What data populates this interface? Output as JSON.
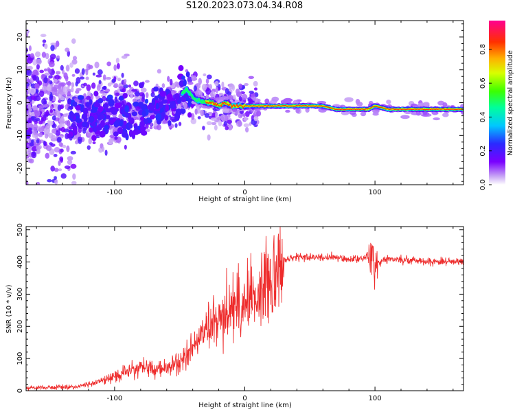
{
  "title": "S120.2023.073.04.34.R08",
  "chart_data": [
    {
      "type": "heatmap",
      "xlabel": "Height of straight line (km)",
      "ylabel": "Frequency (Hz)",
      "xlim": [
        -168,
        168
      ],
      "ylim": [
        -25,
        25
      ],
      "x_ticks": [
        -100,
        0,
        100
      ],
      "y_ticks": [
        -20,
        -10,
        0,
        10,
        20
      ],
      "ridge_x": [
        -80,
        -60,
        -45,
        -38,
        -30,
        -25,
        -20,
        -15,
        -10,
        -5,
        0,
        20,
        40,
        60,
        70,
        75,
        80,
        85,
        90,
        95,
        100,
        110,
        120,
        140,
        168
      ],
      "ridge_freq": [
        -4,
        -2,
        4,
        1,
        0,
        0,
        -1,
        0,
        -1,
        -1,
        -1,
        -1,
        -1,
        -1,
        -2,
        -2,
        -2,
        -2,
        -2,
        -2,
        -1,
        -2,
        -2,
        -2,
        -2
      ],
      "colorbar": {
        "label": "Normalized spectral amplitude",
        "ticks": [
          "0.0",
          "0.2",
          "0.4",
          "0.6",
          "0.8"
        ],
        "range": [
          0,
          0.97
        ]
      }
    },
    {
      "type": "line",
      "xlabel": "Height of straight line (km)",
      "ylabel": "SNR (10 * v/v)",
      "xlim": [
        -168,
        168
      ],
      "ylim": [
        0,
        510
      ],
      "x_ticks": [
        -100,
        0,
        100
      ],
      "y_ticks": [
        0,
        100,
        200,
        300,
        400,
        500
      ],
      "series": [
        {
          "color": "#ee2c2c",
          "x": [
            -168,
            -150,
            -130,
            -120,
            -110,
            -100,
            -90,
            -80,
            -70,
            -60,
            -50,
            -45,
            -40,
            -30,
            -20,
            -10,
            0,
            10,
            20,
            25,
            30,
            35,
            40,
            60,
            80,
            90,
            95,
            97,
            100,
            110,
            130,
            150,
            168
          ],
          "y": [
            10,
            10,
            12,
            20,
            30,
            45,
            60,
            75,
            65,
            70,
            85,
            110,
            140,
            180,
            220,
            260,
            280,
            300,
            360,
            390,
            405,
            410,
            415,
            415,
            410,
            410,
            420,
            400,
            395,
            410,
            405,
            400,
            405
          ]
        }
      ]
    }
  ]
}
